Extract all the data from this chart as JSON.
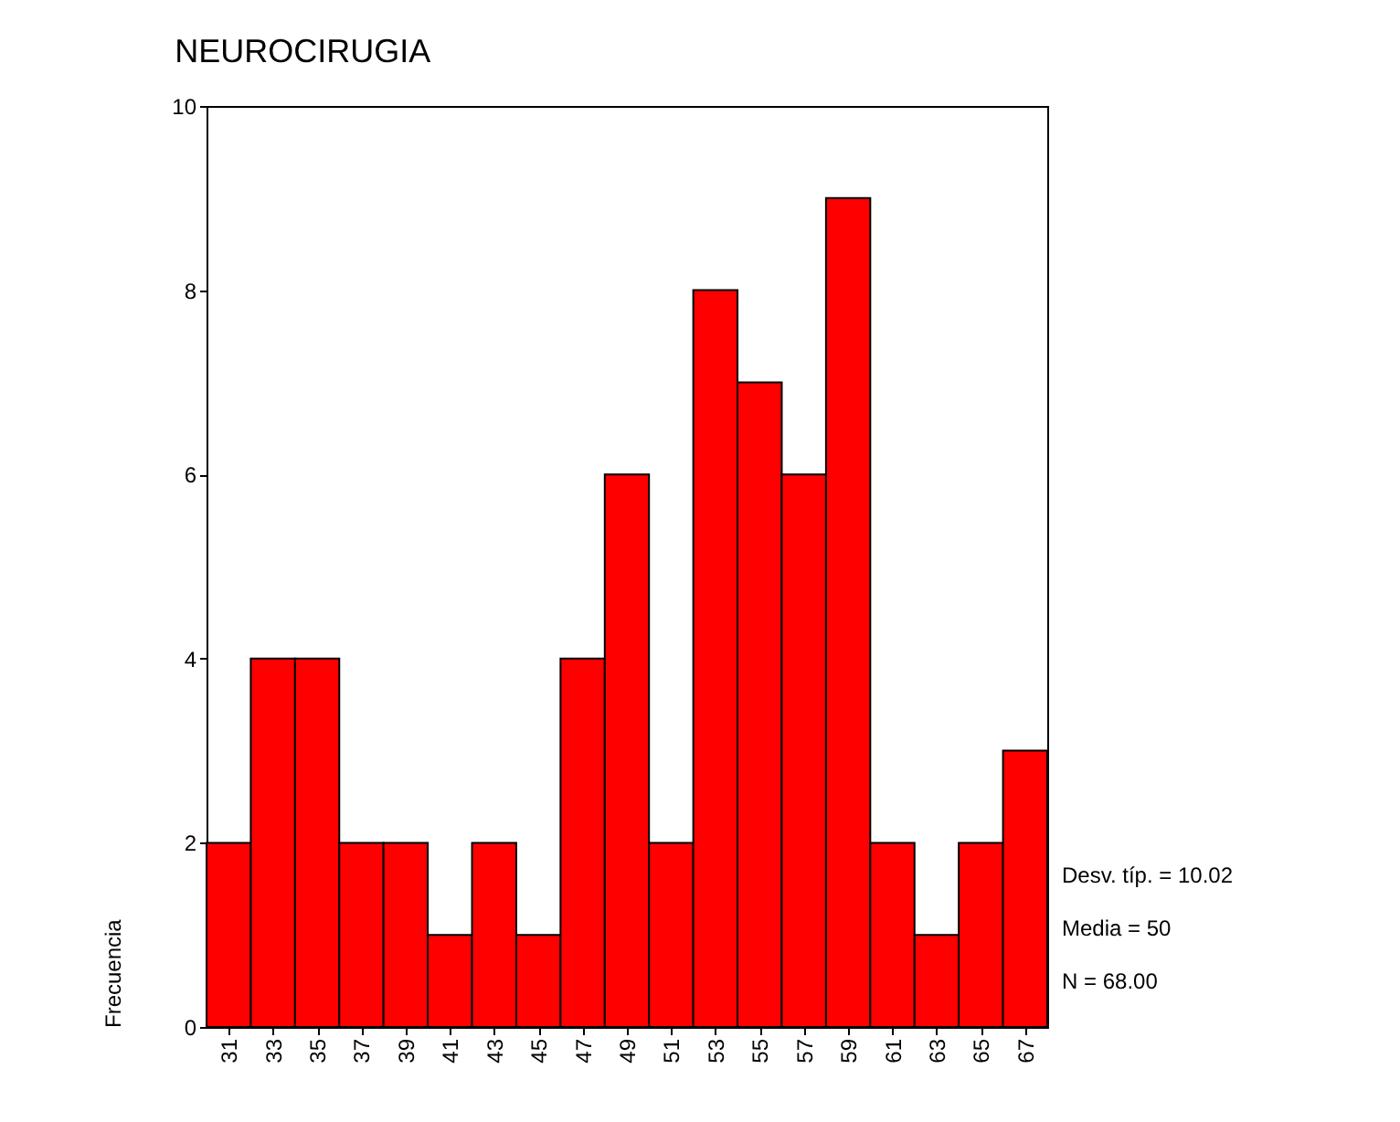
{
  "chart_data": {
    "type": "histogram",
    "title": "NEUROCIRUGIA",
    "ylabel": "Frecuencia",
    "bins": [
      30,
      32,
      34,
      36,
      38,
      40,
      42,
      44,
      46,
      48,
      50,
      52,
      54,
      56,
      58,
      60,
      62,
      64,
      66,
      68
    ],
    "values": [
      2,
      4,
      4,
      2,
      2,
      1,
      2,
      1,
      4,
      6,
      2,
      8,
      7,
      6,
      9,
      2,
      1,
      2,
      3
    ],
    "color": "#ff0000",
    "xlim": [
      30,
      68
    ],
    "xticks": [
      31,
      33,
      35,
      37,
      39,
      41,
      43,
      45,
      47,
      49,
      51,
      53,
      55,
      57,
      59,
      61,
      63,
      65,
      67
    ],
    "ylim": [
      0,
      10
    ],
    "yticks": [
      0,
      2,
      4,
      6,
      8,
      10
    ],
    "annotations": [
      "Desv. típ. = 10.02",
      "Media = 50",
      "N = 68.00"
    ]
  }
}
